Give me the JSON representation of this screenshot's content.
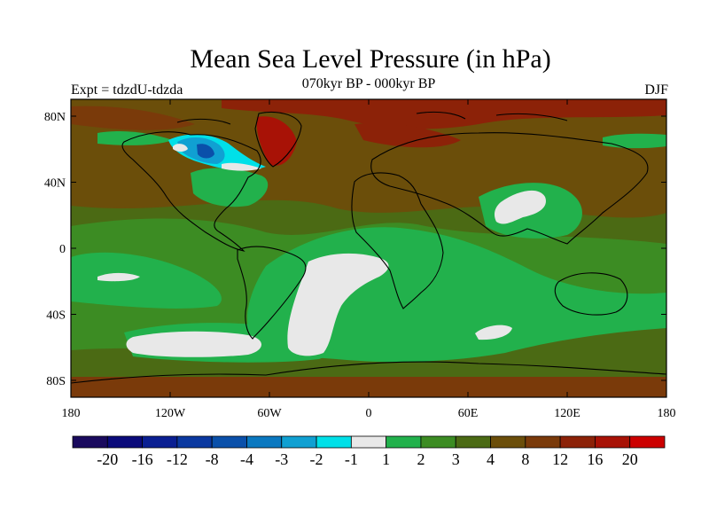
{
  "title": "Mean Sea Level Pressure (in hPa)",
  "subtitle": "070kyr BP - 000kyr BP",
  "experiment": "Expt = tdzdU-tdzda",
  "season": "DJF",
  "map": {
    "lat_ticks": [
      "80N",
      "40N",
      "0",
      "40S",
      "80S"
    ],
    "lon_ticks": [
      "180",
      "120W",
      "60W",
      "0",
      "60E",
      "120E",
      "180"
    ]
  },
  "colorbar": {
    "labels": [
      "-20",
      "-16",
      "-12",
      "-8",
      "-4",
      "-3",
      "-2",
      "-1",
      "1",
      "2",
      "3",
      "4",
      "8",
      "12",
      "16",
      "20"
    ],
    "colors": [
      "#1a0a5e",
      "#0a0a7a",
      "#0a1f92",
      "#0a38a0",
      "#0a50aa",
      "#0a78c0",
      "#10a0d2",
      "#00e0e8",
      "#e8e8e8",
      "#22b14c",
      "#3c8c23",
      "#4b6a14",
      "#6b4e0a",
      "#7a3a0a",
      "#8c2208",
      "#a81206",
      "#cc0000"
    ]
  },
  "colors": {
    "deep_red": "#8c2208",
    "brown": "#6b4e0a",
    "olive": "#4b6a14",
    "green": "#3c8c23",
    "bright_green": "#22b14c",
    "white": "#e8e8e8",
    "blue": "#0a78c0",
    "cyan": "#00e0e8",
    "red": "#a81206"
  }
}
